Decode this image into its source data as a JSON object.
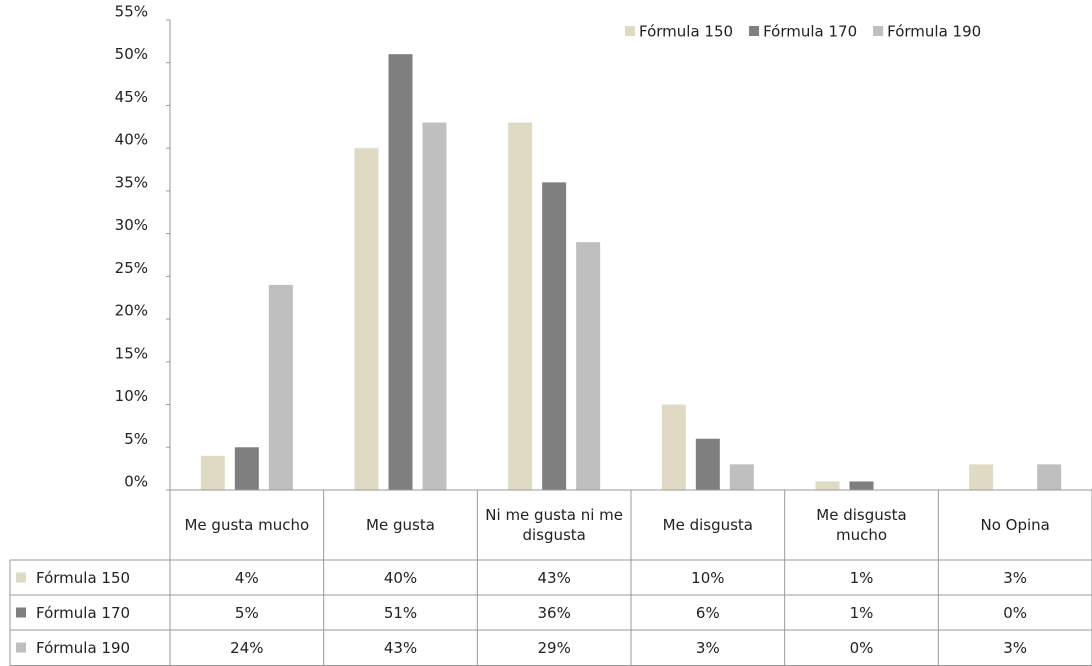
{
  "chart_data": {
    "type": "bar",
    "categories": [
      "Me gusta mucho",
      "Me gusta",
      "Ni me gusta ni me disgusta",
      "Me disgusta",
      "Me disgusta mucho",
      "No Opina"
    ],
    "series": [
      {
        "name": "Fórmula 150",
        "color": "#dedac4",
        "values": [
          4,
          40,
          43,
          10,
          1,
          3
        ],
        "value_labels": [
          "4%",
          "40%",
          "43%",
          "10%",
          "1%",
          "3%"
        ]
      },
      {
        "name": "Fórmula 170",
        "color": "#7f7f7f",
        "values": [
          5,
          51,
          36,
          6,
          1,
          0
        ],
        "value_labels": [
          "5%",
          "51%",
          "36%",
          "6%",
          "1%",
          "0%"
        ]
      },
      {
        "name": "Fórmula 190",
        "color": "#bfbfbf",
        "values": [
          24,
          43,
          29,
          3,
          0,
          3
        ],
        "value_labels": [
          "24%",
          "43%",
          "29%",
          "3%",
          "0%",
          "3%"
        ]
      }
    ],
    "ylim": [
      0,
      55
    ],
    "yticks": [
      {
        "value": 0,
        "label": "0%"
      },
      {
        "value": 5,
        "label": "5%"
      },
      {
        "value": 10,
        "label": "10%"
      },
      {
        "value": 15,
        "label": "15%"
      },
      {
        "value": 20,
        "label": "20%"
      },
      {
        "value": 25,
        "label": "25%"
      },
      {
        "value": 30,
        "label": "30%"
      },
      {
        "value": 35,
        "label": "35%"
      },
      {
        "value": 40,
        "label": "40%"
      },
      {
        "value": 45,
        "label": "45%"
      },
      {
        "value": 50,
        "label": "50%"
      },
      {
        "value": 55,
        "label": "55%"
      }
    ],
    "legend": "top-right",
    "grid": false
  }
}
